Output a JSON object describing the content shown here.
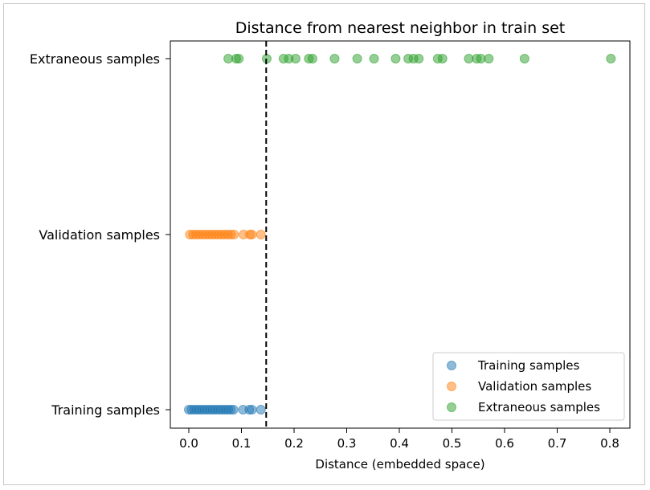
{
  "chart_data": {
    "type": "scatter",
    "title": "Distance from nearest neighbor in train set",
    "xlabel": "Distance (embedded space)",
    "ylabel": "",
    "xlim": [
      -0.04,
      0.84
    ],
    "x_ticks": [
      "0.0",
      "0.1",
      "0.2",
      "0.3",
      "0.4",
      "0.5",
      "0.6",
      "0.7",
      "0.8"
    ],
    "categories": [
      "Training samples",
      "Validation samples",
      "Extraneous samples"
    ],
    "threshold": 0.147,
    "legend_position": "lower-right",
    "series": [
      {
        "name": "Training samples",
        "color": "#1f77b4",
        "category_index": 0,
        "values": [
          0.0,
          0.005,
          0.01,
          0.015,
          0.02,
          0.025,
          0.03,
          0.035,
          0.04,
          0.045,
          0.05,
          0.055,
          0.06,
          0.065,
          0.07,
          0.075,
          0.08,
          0.085,
          0.103,
          0.115,
          0.12,
          0.137
        ]
      },
      {
        "name": "Validation samples",
        "color": "#ff7f0e",
        "category_index": 1,
        "values": [
          0.002,
          0.008,
          0.014,
          0.02,
          0.026,
          0.032,
          0.038,
          0.044,
          0.05,
          0.056,
          0.062,
          0.068,
          0.074,
          0.08,
          0.086,
          0.104,
          0.116,
          0.12,
          0.137
        ]
      },
      {
        "name": "Extraneous samples",
        "color": "#2ca02c",
        "category_index": 2,
        "values": [
          0.075,
          0.09,
          0.095,
          0.148,
          0.18,
          0.19,
          0.203,
          0.228,
          0.235,
          0.277,
          0.32,
          0.352,
          0.393,
          0.417,
          0.427,
          0.437,
          0.473,
          0.482,
          0.532,
          0.547,
          0.555,
          0.57,
          0.638,
          0.802
        ]
      }
    ]
  }
}
